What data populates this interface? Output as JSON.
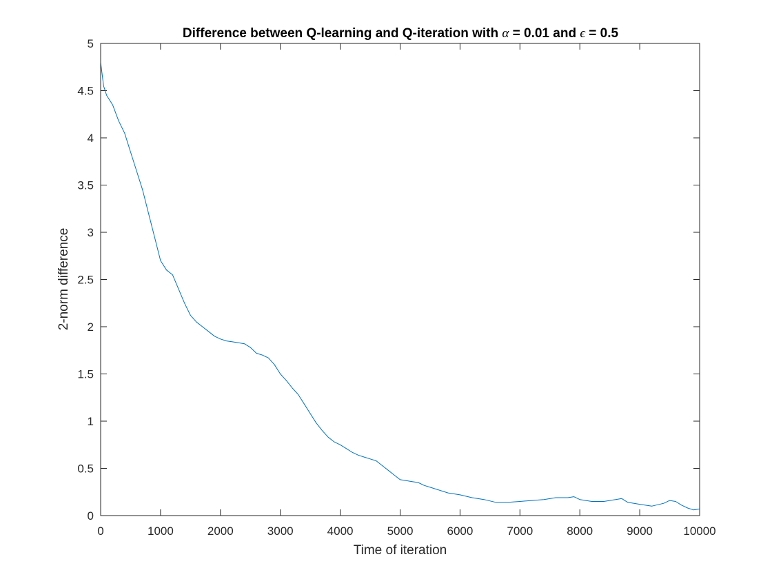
{
  "chart_data": {
    "type": "line",
    "title_parts": {
      "prefix": "Difference between Q-learning and Q-iteration with ",
      "alpha_symbol": "α",
      "alpha_text": " = 0.01 and ",
      "epsilon_symbol": "ϵ",
      "epsilon_text": " = 0.5"
    },
    "xlabel": "Time of iteration",
    "ylabel": "2-norm difference",
    "xlim": [
      0,
      10000
    ],
    "ylim": [
      0,
      5
    ],
    "x_ticks": [
      "0",
      "1000",
      "2000",
      "3000",
      "4000",
      "5000",
      "6000",
      "7000",
      "8000",
      "9000",
      "10000"
    ],
    "y_ticks": [
      "0",
      "0.5",
      "1",
      "1.5",
      "2",
      "2.5",
      "3",
      "3.5",
      "4",
      "4.5",
      "5"
    ],
    "grid": false,
    "box": true,
    "line_color": "#0072BD",
    "series": [
      {
        "x": [
          0,
          50,
          100,
          200,
          300,
          400,
          500,
          600,
          700,
          800,
          900,
          1000,
          1100,
          1200,
          1300,
          1400,
          1500,
          1600,
          1700,
          1800,
          1900,
          2000,
          2100,
          2200,
          2300,
          2400,
          2500,
          2600,
          2700,
          2800,
          2900,
          3000,
          3100,
          3200,
          3300,
          3400,
          3500,
          3600,
          3700,
          3800,
          3900,
          4000,
          4100,
          4200,
          4300,
          4400,
          4500,
          4600,
          4700,
          4800,
          4900,
          5000,
          5100,
          5200,
          5300,
          5400,
          5500,
          5600,
          5700,
          5800,
          5900,
          6000,
          6200,
          6400,
          6600,
          6800,
          7000,
          7200,
          7400,
          7600,
          7800,
          7900,
          8000,
          8200,
          8400,
          8600,
          8700,
          8800,
          9000,
          9200,
          9400,
          9500,
          9600,
          9700,
          9800,
          9900,
          10000
        ],
        "y": [
          4.8,
          4.55,
          4.45,
          4.35,
          4.18,
          4.05,
          3.85,
          3.65,
          3.45,
          3.2,
          2.95,
          2.7,
          2.6,
          2.55,
          2.4,
          2.25,
          2.12,
          2.05,
          2.0,
          1.95,
          1.9,
          1.87,
          1.85,
          1.84,
          1.83,
          1.82,
          1.78,
          1.72,
          1.7,
          1.67,
          1.6,
          1.5,
          1.43,
          1.35,
          1.28,
          1.18,
          1.08,
          0.98,
          0.9,
          0.83,
          0.78,
          0.75,
          0.71,
          0.67,
          0.64,
          0.62,
          0.6,
          0.58,
          0.53,
          0.48,
          0.43,
          0.38,
          0.37,
          0.36,
          0.35,
          0.32,
          0.3,
          0.28,
          0.26,
          0.24,
          0.23,
          0.22,
          0.19,
          0.17,
          0.14,
          0.14,
          0.15,
          0.16,
          0.17,
          0.19,
          0.19,
          0.2,
          0.17,
          0.15,
          0.15,
          0.17,
          0.18,
          0.14,
          0.12,
          0.1,
          0.13,
          0.16,
          0.15,
          0.11,
          0.08,
          0.06,
          0.07
        ]
      }
    ]
  }
}
